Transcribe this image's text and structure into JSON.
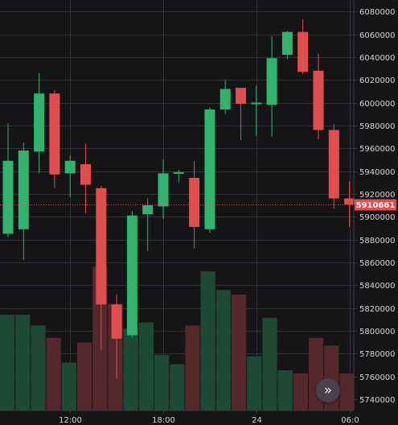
{
  "chart_data": {
    "type": "candlestick",
    "price_axis": {
      "ticks": [
        "6080000",
        "6060000",
        "6040000",
        "6020000",
        "6000000",
        "5980000",
        "5960000",
        "5940000",
        "5920000",
        "5900000",
        "5880000",
        "5860000",
        "5840000",
        "5820000",
        "5800000",
        "5780000",
        "5760000",
        "5740000"
      ],
      "min": 5730000,
      "max": 6090000
    },
    "time_axis": {
      "ticks": [
        {
          "label": "12:00",
          "index": 4
        },
        {
          "label": "18:00",
          "index": 10
        },
        {
          "label": "24",
          "index": 16
        },
        {
          "label": "06:0",
          "index": 22
        }
      ]
    },
    "last_price": {
      "value": 5910661,
      "label": "5910661"
    },
    "candles": [
      {
        "o": 5885000,
        "h": 5982000,
        "l": 5882000,
        "c": 5949000,
        "v": 0.62
      },
      {
        "o": 5889000,
        "h": 5965000,
        "l": 5862000,
        "c": 5958000,
        "v": 0.62
      },
      {
        "o": 5957000,
        "h": 6026000,
        "l": 5938000,
        "c": 6008000,
        "v": 0.55
      },
      {
        "o": 6008000,
        "h": 6011000,
        "l": 5925000,
        "c": 5937000,
        "v": 0.47
      },
      {
        "o": 5938000,
        "h": 5954000,
        "l": 5917000,
        "c": 5949000,
        "v": 0.31
      },
      {
        "o": 5946000,
        "h": 5964000,
        "l": 5903000,
        "c": 5928000,
        "v": 0.44
      },
      {
        "o": 5925000,
        "h": 5927000,
        "l": 5783000,
        "c": 5823000,
        "v": 0.93
      },
      {
        "o": 5823000,
        "h": 5832000,
        "l": 5758000,
        "c": 5793000,
        "v": 0.69
      },
      {
        "o": 5796000,
        "h": 5905000,
        "l": 5794000,
        "c": 5901000,
        "v": 0.53
      },
      {
        "o": 5902000,
        "h": 5916000,
        "l": 5870000,
        "c": 5910000,
        "v": 0.57
      },
      {
        "o": 5909000,
        "h": 5950000,
        "l": 5898000,
        "c": 5938000,
        "v": 0.36
      },
      {
        "o": 5938000,
        "h": 5941000,
        "l": 5930000,
        "c": 5939000,
        "v": 0.3
      },
      {
        "o": 5934000,
        "h": 5949000,
        "l": 5872000,
        "c": 5891000,
        "v": 0.55
      },
      {
        "o": 5889000,
        "h": 5996000,
        "l": 5886000,
        "c": 5994000,
        "v": 0.9
      },
      {
        "o": 5994000,
        "h": 6020000,
        "l": 5990000,
        "c": 6012000,
        "v": 0.78
      },
      {
        "o": 6013000,
        "h": 6013000,
        "l": 5967000,
        "c": 5999000,
        "v": 0.75
      },
      {
        "o": 5999000,
        "h": 6015000,
        "l": 5971000,
        "c": 6000000,
        "v": 0.35
      },
      {
        "o": 5998000,
        "h": 6058000,
        "l": 5970000,
        "c": 6039000,
        "v": 0.6
      },
      {
        "o": 6042000,
        "h": 6063000,
        "l": 6038000,
        "c": 6062000,
        "v": 0.26
      },
      {
        "o": 6062000,
        "h": 6073000,
        "l": 6025000,
        "c": 6027000,
        "v": 0.24
      },
      {
        "o": 6028000,
        "h": 6043000,
        "l": 5968000,
        "c": 5976000,
        "v": 0.47
      },
      {
        "o": 5976000,
        "h": 5981000,
        "l": 5907000,
        "c": 5916000,
        "v": 0.42
      },
      {
        "o": 5916000,
        "h": 5931000,
        "l": 5891000,
        "c": 5910661,
        "v": 0.24
      }
    ],
    "colors": {
      "up": "#2fb36d",
      "down": "#e24e4e",
      "up_volume": "#1e4a35",
      "down_volume": "#55282b",
      "background": "#151517",
      "grid": "#333338",
      "axis_text": "#d6d6d6",
      "last_price_line": "#e24e4e"
    }
  },
  "controls": {
    "scroll_to_latest_icon": "»"
  }
}
